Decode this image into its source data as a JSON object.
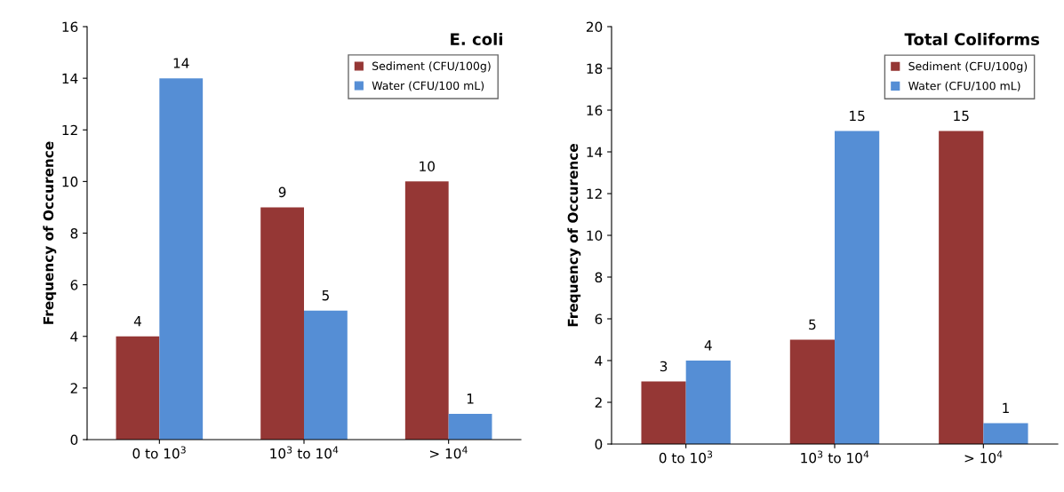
{
  "chart_data": [
    {
      "type": "bar",
      "title": "E. coli",
      "ylabel": "Frequency of Occurence",
      "categories": [
        "0 to 10$^{3}$",
        "10$^{3}$ to 10$^{4}$",
        "> 10$^{4}$"
      ],
      "series": [
        {
          "name": "Sediment (CFU/100g)",
          "color": "#953735",
          "values": [
            4,
            9,
            10
          ]
        },
        {
          "name": "Water (CFU/100 mL)",
          "color": "#558ed5",
          "values": [
            14,
            5,
            1
          ]
        }
      ],
      "ylim": [
        0,
        16
      ],
      "yticks": [
        0,
        2,
        4,
        6,
        8,
        10,
        12,
        14,
        16
      ],
      "data_labels": true,
      "legend": "top right",
      "grid": false
    },
    {
      "type": "bar",
      "title": "Total Coliforms",
      "ylabel": "Frequency of Occurence",
      "categories": [
        "0 to 10$^{3}$",
        "10$^{3}$ to 10$^{4}$",
        "> 10$^{4}$"
      ],
      "series": [
        {
          "name": "Sediment (CFU/100g)",
          "color": "#953735",
          "values": [
            3,
            5,
            15
          ]
        },
        {
          "name": "Water (CFU/100 mL)",
          "color": "#558ed5",
          "values": [
            4,
            15,
            1
          ]
        }
      ],
      "ylim": [
        0,
        20
      ],
      "yticks": [
        0,
        2,
        4,
        6,
        8,
        10,
        12,
        14,
        16,
        18,
        20
      ],
      "data_labels": true,
      "legend": "top right",
      "grid": false
    }
  ]
}
